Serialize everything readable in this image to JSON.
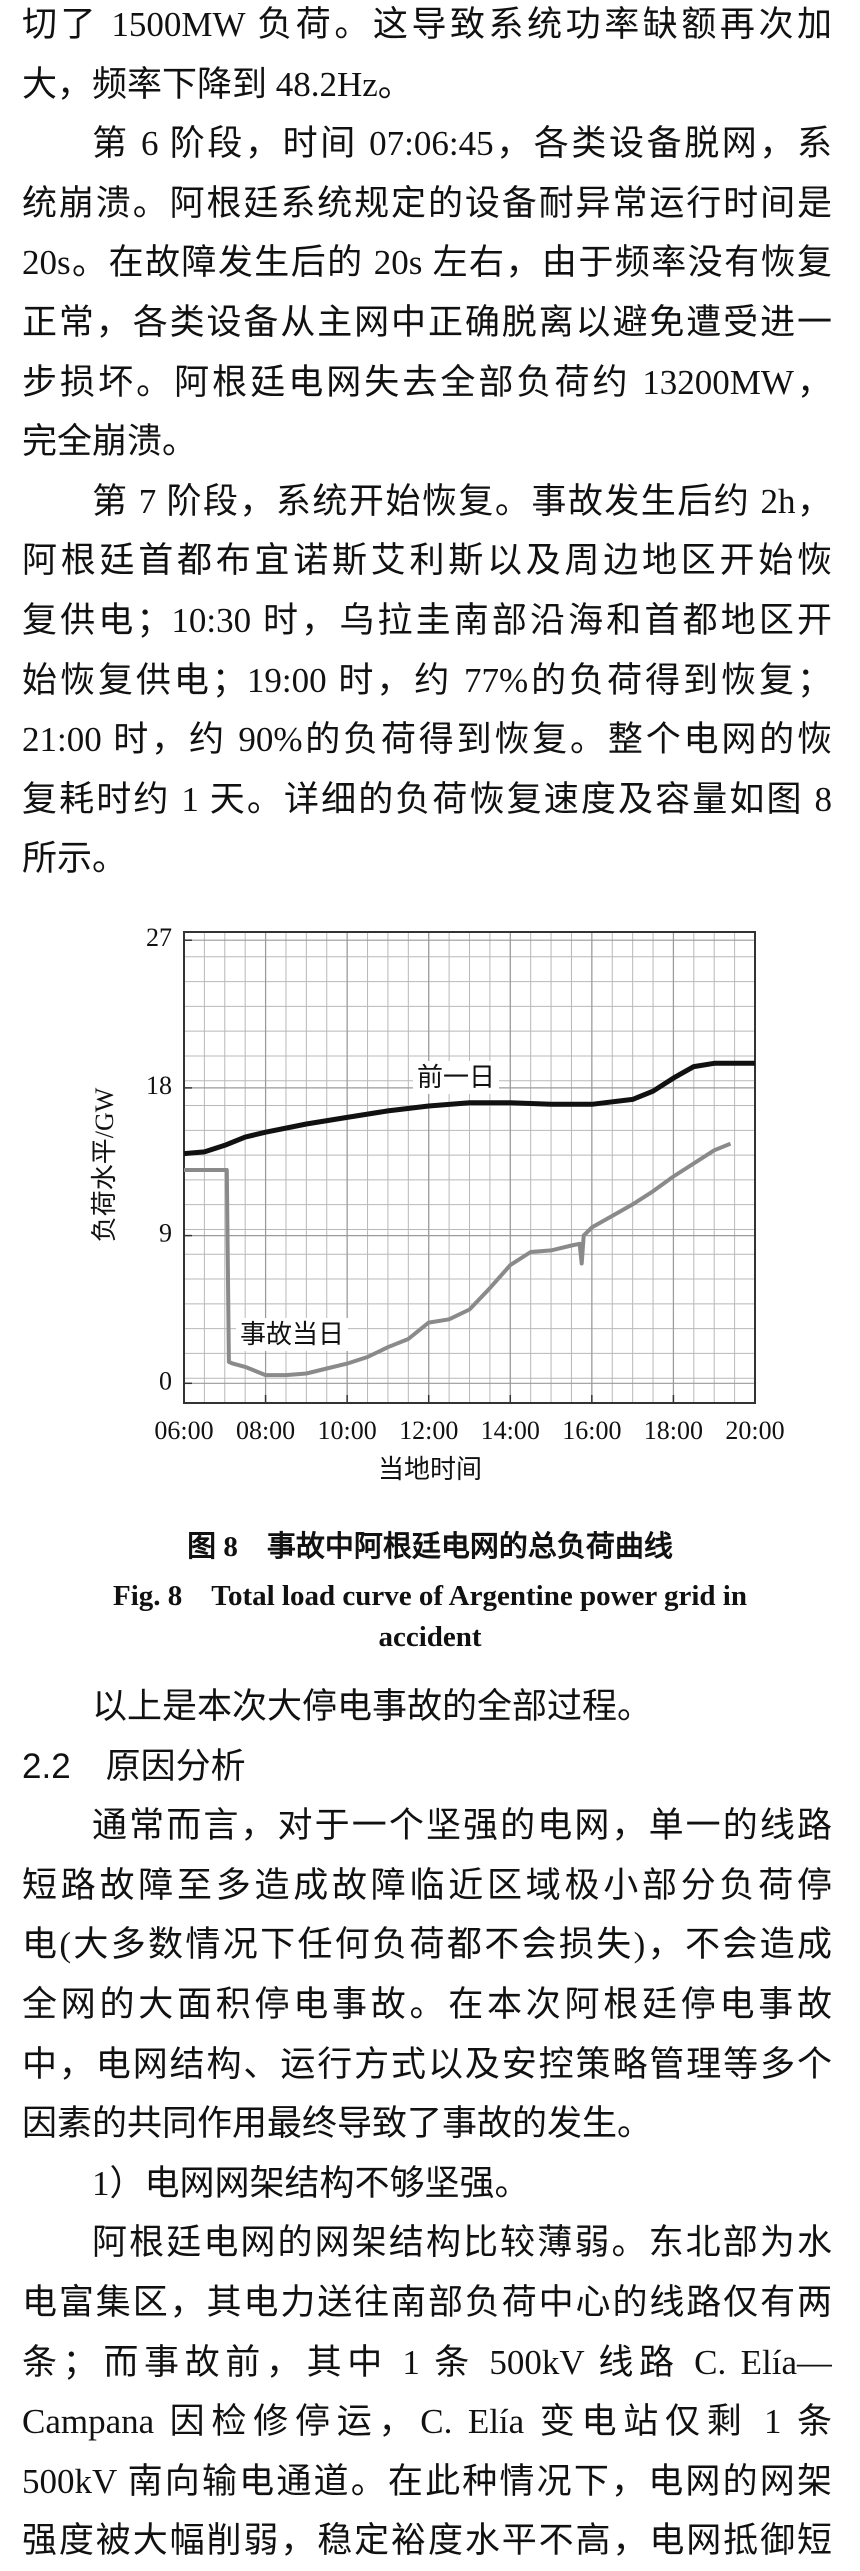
{
  "text_before": {
    "paragraphs": [
      [
        "切了 1500MW 负荷。这导致系统功率缺额再次加",
        "大，频率下降到 48.2Hz。"
      ],
      [
        "第 6 阶段，时间 07:06:45，各类设备脱网，系",
        "统崩溃。阿根廷系统规定的设备耐异常运行时间是",
        "20s。在故障发生后的 20s 左右，由于频率没有恢复",
        "正常，各类设备从主网中正确脱离以避免遭受进一",
        "步损坏。阿根廷电网失去全部负荷约 13200MW，",
        "完全崩溃。"
      ],
      [
        "第 7 阶段，系统开始恢复。事故发生后约 2h，",
        "阿根廷首都布宜诺斯艾利斯以及周边地区开始恢",
        "复供电；10:30 时，乌拉圭南部沿海和首都地区开",
        "始恢复供电；19:00 时，约 77%的负荷得到恢复；",
        "21:00 时，约 90%的负荷得到恢复。整个电网的恢",
        "复耗时约 1 天。详细的负荷恢复速度及容量如图 8",
        "所示。"
      ]
    ]
  },
  "chart_data": {
    "type": "line",
    "x_label": "当地时间",
    "y_label": "负荷水平/GW",
    "xlim": [
      6,
      20
    ],
    "ylim": [
      -1.2,
      27.5
    ],
    "xticks": [
      {
        "value": 6,
        "label": "06:00"
      },
      {
        "value": 8,
        "label": "08:00"
      },
      {
        "value": 10,
        "label": "10:00"
      },
      {
        "value": 12,
        "label": "12:00"
      },
      {
        "value": 14,
        "label": "14:00"
      },
      {
        "value": 16,
        "label": "16:00"
      },
      {
        "value": 18,
        "label": "18:00"
      },
      {
        "value": 20,
        "label": "20:00"
      }
    ],
    "yticks": [
      0,
      9,
      18,
      27
    ],
    "grid": true,
    "series": [
      {
        "name": "前一日",
        "color": "#111111",
        "x": [
          6,
          6.5,
          7,
          7.5,
          8,
          9,
          10,
          11,
          12,
          13,
          14,
          15,
          16,
          17,
          17.5,
          18,
          18.5,
          19,
          20
        ],
        "values": [
          14,
          14.1,
          14.5,
          15,
          15.3,
          15.8,
          16.2,
          16.6,
          16.9,
          17.1,
          17.1,
          17.0,
          17.0,
          17.3,
          17.8,
          18.6,
          19.3,
          19.5,
          19.5
        ]
      },
      {
        "name": "事故当日",
        "color": "#8a8a8a",
        "x": [
          6,
          7.05,
          7.1,
          7.2,
          7.5,
          8,
          8.5,
          9,
          9.5,
          10,
          10.5,
          11,
          11.5,
          12,
          12.5,
          13,
          13.5,
          14,
          14.5,
          15,
          15.5,
          15.7,
          15.75,
          15.8,
          16,
          16.5,
          17,
          17.5,
          18,
          18.5,
          19,
          19.4
        ],
        "values": [
          13,
          13,
          1.3,
          1.2,
          1.0,
          0.5,
          0.5,
          0.6,
          0.9,
          1.2,
          1.6,
          2.2,
          2.7,
          3.7,
          3.9,
          4.5,
          5.8,
          7.2,
          8.0,
          8.1,
          8.4,
          8.5,
          7.3,
          9.0,
          9.5,
          10.2,
          10.9,
          11.7,
          12.6,
          13.4,
          14.2,
          14.6
        ]
      }
    ]
  },
  "caption": {
    "zh": "图 8　事故中阿根廷电网的总负荷曲线",
    "en": [
      "Fig. 8　Total load curve of Argentine power grid in",
      "accident"
    ]
  },
  "text_after": {
    "summary": "以上是本次大停电事故的全部过程。",
    "heading": "2.2　原因分析",
    "paragraph_1": [
      "通常而言，对于一个坚强的电网，单一的线路",
      "短路故障至多造成故障临近区域极小部分负荷停",
      "电(大多数情况下任何负荷都不会损失)，不会造成",
      "全网的大面积停电事故。在本次阿根廷停电事故",
      "中，电网结构、运行方式以及安控策略管理等多个",
      "因素的共同作用最终导致了事故的发生。"
    ],
    "item_1": "1）电网网架结构不够坚强。",
    "paragraph_2": [
      "阿根廷电网的网架结构比较薄弱。东北部为水",
      "电富集区，其电力送往南部负荷中心的线路仅有两",
      "条；而事故前，其中 1 条 500kV 线路 C. Elía—",
      "Campana 因检修停运，C. Elía 变电站仅剩 1 条",
      "500kV 南向输电通道。在此种情况下，电网的网架",
      "强度被大幅削弱，稳定裕度水平不高，电网抵御短"
    ]
  }
}
